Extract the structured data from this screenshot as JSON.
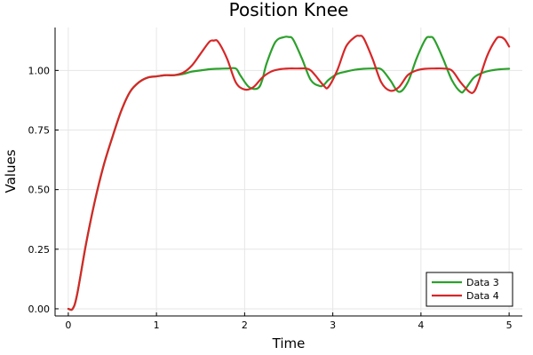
{
  "chart_data": {
    "type": "line",
    "title": "Position Knee",
    "xlabel": "Time",
    "ylabel": "Values",
    "xlim": [
      -0.15,
      5.15
    ],
    "ylim": [
      -0.03,
      1.18
    ],
    "xticks": [
      0,
      1,
      2,
      3,
      4,
      5
    ],
    "xtick_labels": [
      "0",
      "1",
      "2",
      "3",
      "4",
      "5"
    ],
    "yticks": [
      0,
      0.25,
      0.5,
      0.75,
      1.0
    ],
    "ytick_labels": [
      "0.00",
      "0.25",
      "0.50",
      "0.75",
      "1.00"
    ],
    "grid": true,
    "legend_position": "bottom-right",
    "series": [
      {
        "name": "Data 3",
        "color": "#2ca02c",
        "x": [
          0,
          0.05,
          0.1,
          0.2,
          0.3,
          0.4,
          0.5,
          0.6,
          0.7,
          0.8,
          0.9,
          1.0,
          1.1,
          1.2,
          1.3,
          1.4,
          1.5,
          1.6,
          1.7,
          1.8,
          1.9,
          1.95,
          2.05,
          2.15,
          2.2,
          2.25,
          2.35,
          2.45,
          2.5,
          2.55,
          2.65,
          2.75,
          2.85,
          2.9,
          2.95,
          3.05,
          3.15,
          3.25,
          3.35,
          3.45,
          3.55,
          3.65,
          3.75,
          3.85,
          3.95,
          4.05,
          4.1,
          4.15,
          4.25,
          4.35,
          4.45,
          4.5,
          4.6,
          4.7,
          4.8,
          4.9,
          5.0
        ],
        "y": [
          0,
          0.0,
          0.06,
          0.27,
          0.45,
          0.6,
          0.72,
          0.83,
          0.91,
          0.95,
          0.97,
          0.975,
          0.98,
          0.98,
          0.985,
          0.995,
          1.0,
          1.005,
          1.007,
          1.008,
          1.008,
          0.98,
          0.93,
          0.925,
          0.96,
          1.03,
          1.12,
          1.14,
          1.14,
          1.13,
          1.05,
          0.96,
          0.935,
          0.94,
          0.96,
          0.985,
          0.995,
          1.003,
          1.007,
          1.008,
          1.005,
          0.96,
          0.91,
          0.95,
          1.05,
          1.13,
          1.14,
          1.13,
          1.05,
          0.96,
          0.91,
          0.92,
          0.97,
          0.99,
          1.0,
          1.005,
          1.007
        ]
      },
      {
        "name": "Data 4",
        "color": "#d62728",
        "x": [
          0,
          0.05,
          0.1,
          0.2,
          0.3,
          0.4,
          0.5,
          0.6,
          0.7,
          0.8,
          0.9,
          1.0,
          1.1,
          1.2,
          1.3,
          1.4,
          1.5,
          1.6,
          1.65,
          1.7,
          1.8,
          1.9,
          2.0,
          2.1,
          2.2,
          2.3,
          2.4,
          2.5,
          2.6,
          2.7,
          2.75,
          2.8,
          2.9,
          2.95,
          3.05,
          3.15,
          3.25,
          3.3,
          3.35,
          3.45,
          3.55,
          3.65,
          3.75,
          3.85,
          3.95,
          4.05,
          4.15,
          4.25,
          4.35,
          4.45,
          4.55,
          4.6,
          4.65,
          4.75,
          4.85,
          4.9,
          4.95,
          5.0
        ],
        "y": [
          0,
          0.0,
          0.06,
          0.27,
          0.45,
          0.6,
          0.72,
          0.83,
          0.91,
          0.95,
          0.97,
          0.975,
          0.98,
          0.98,
          0.99,
          1.02,
          1.07,
          1.12,
          1.125,
          1.12,
          1.05,
          0.95,
          0.92,
          0.93,
          0.97,
          0.995,
          1.005,
          1.008,
          1.008,
          1.008,
          1.0,
          0.98,
          0.935,
          0.93,
          1.0,
          1.1,
          1.14,
          1.145,
          1.135,
          1.05,
          0.95,
          0.915,
          0.93,
          0.98,
          1.0,
          1.007,
          1.008,
          1.008,
          1.0,
          0.95,
          0.91,
          0.91,
          0.95,
          1.06,
          1.13,
          1.14,
          1.13,
          1.1
        ]
      }
    ]
  }
}
